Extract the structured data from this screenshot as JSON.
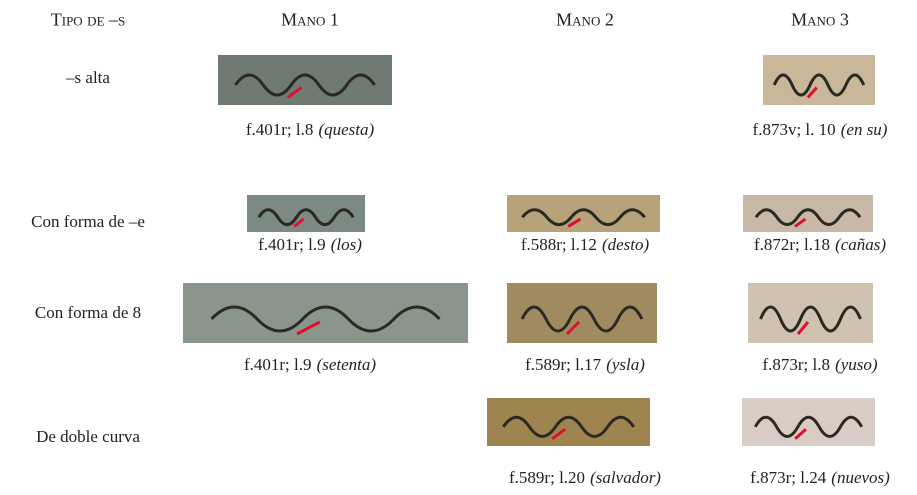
{
  "table": {
    "header": [
      "Tipo de –s",
      "Mano 1",
      "Mano 2",
      "Mano 3"
    ],
    "rows": [
      {
        "label": "–s alta",
        "cells": [
          {
            "folio": "f.401r; l.8",
            "word": "(questa)"
          },
          null,
          {
            "folio": "f.873v; l. 10",
            "word": "(en su)"
          }
        ]
      },
      {
        "label": "Con forma de –e",
        "cells": [
          {
            "folio": "f.401r; l.9",
            "word": "(los)"
          },
          {
            "folio": "f.588r; l.12",
            "word": "(desto)"
          },
          {
            "folio": "f.872r; l.18",
            "word": "(cañas)"
          }
        ]
      },
      {
        "label": "Con forma de 8",
        "cells": [
          {
            "folio": "f.401r; l.9",
            "word": "(setenta)"
          },
          {
            "folio": "f.589r; l.17",
            "word": "(ysla)"
          },
          {
            "folio": "f.873r; l.8",
            "word": "(yuso)"
          }
        ]
      },
      {
        "label": "De doble curva",
        "cells": [
          null,
          {
            "folio": "f.589r; l.20",
            "word": "(salvador)"
          },
          {
            "folio": "f.873r; l.24",
            "word": "(nuevos)"
          }
        ]
      }
    ]
  }
}
